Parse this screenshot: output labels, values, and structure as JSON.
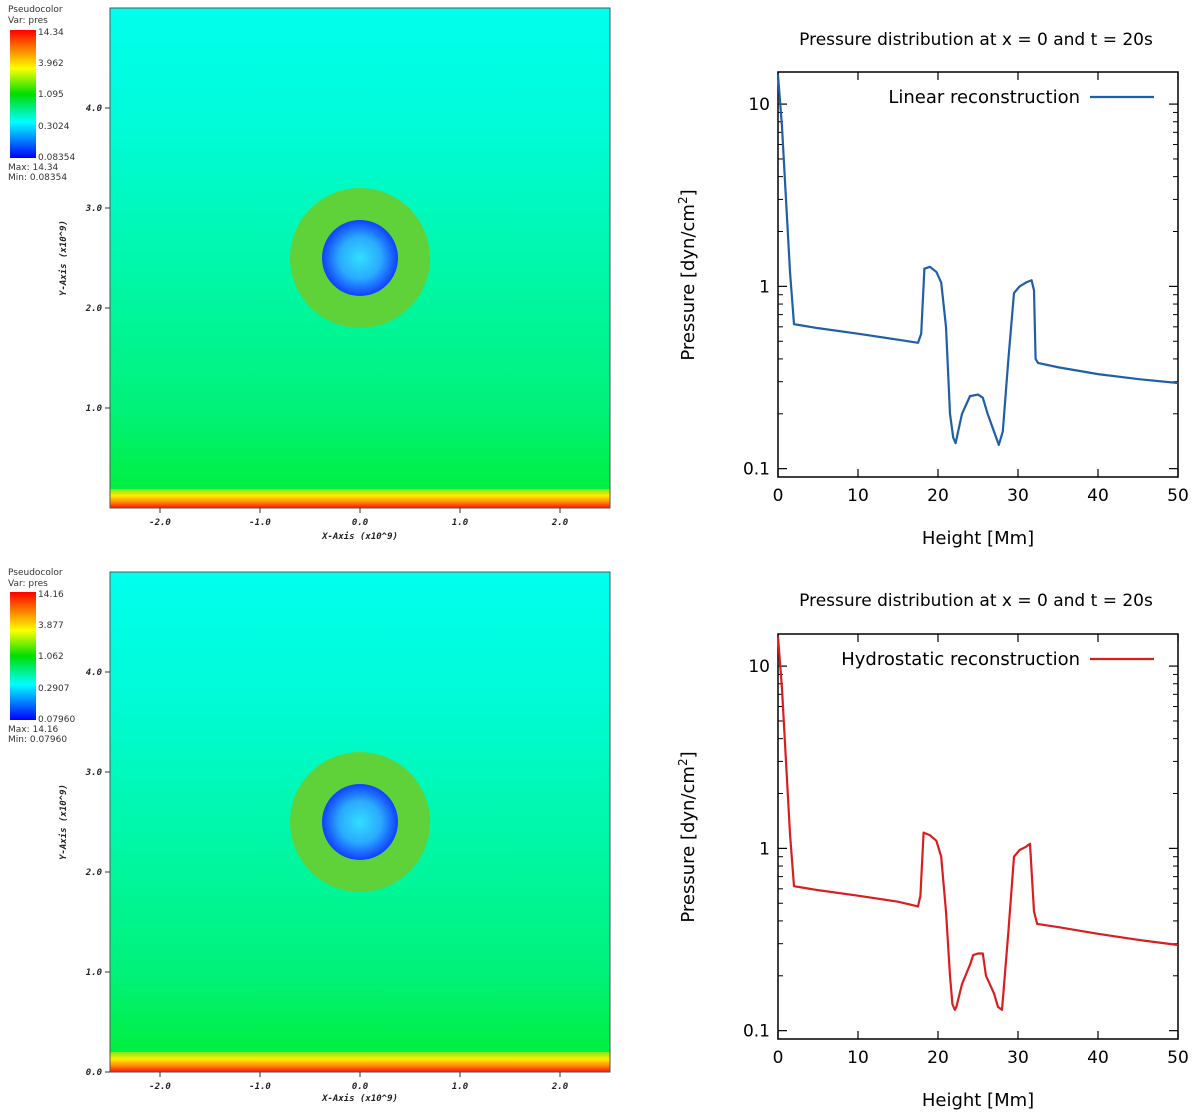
{
  "panels": [
    {
      "id": "top",
      "visit": {
        "legend_title": "Pseudocolor",
        "legend_var": "Var: pres",
        "legend_ticks": [
          "14.34",
          "3.962",
          "1.095",
          "0.3024",
          "0.08354"
        ],
        "legend_max": "Max: 14.34",
        "legend_min": "Min: 0.08354",
        "x_axis_label": "X-Axis (x10^9)",
        "y_axis_label": "Y-Axis (x10^9)",
        "x_ticks": [
          "-2.0",
          "-1.0",
          "0.0",
          "1.0",
          "2.0"
        ],
        "y_ticks": [
          "1.0",
          "2.0",
          "3.0",
          "4.0"
        ],
        "colors": {
          "top": "#00ffee",
          "bottom": "#00ee33",
          "ring": "#5fd23a",
          "bubble": "#2266ff"
        }
      }
    },
    {
      "id": "bottom",
      "visit": {
        "legend_title": "Pseudocolor",
        "legend_var": "Var: pres",
        "legend_ticks": [
          "14.16",
          "3.877",
          "1.062",
          "0.2907",
          "0.07960"
        ],
        "legend_max": "Max: 14.16",
        "legend_min": "Min: 0.07960",
        "x_axis_label": "X-Axis (x10^9)",
        "y_axis_label": "Y-Axis (x10^9)",
        "x_ticks": [
          "-2.0",
          "-1.0",
          "0.0",
          "1.0",
          "2.0"
        ],
        "y_ticks": [
          "0.0",
          "1.0",
          "2.0",
          "3.0",
          "4.0"
        ],
        "colors": {
          "top": "#00ffee",
          "bottom": "#00ee33",
          "ring": "#5fd23a",
          "bubble": "#2266ff"
        }
      }
    }
  ],
  "chart_data": [
    {
      "type": "line",
      "title": "Pressure distribution at x = 0 and t = 20s",
      "xlabel": "Height [Mm]",
      "ylabel": "Pressure [dyn/cm",
      "ylabel_sup": "2",
      "ylabel_end": "]",
      "xlim": [
        0,
        50
      ],
      "ylim": [
        0.09,
        15
      ],
      "yscale": "log",
      "x_ticks": [
        "0",
        "10",
        "20",
        "30",
        "40",
        "50"
      ],
      "y_ticks": [
        "0.1",
        "1",
        "10"
      ],
      "legend_position": "top-right",
      "series": [
        {
          "name": "Linear reconstruction",
          "color": "#1f5fa8",
          "x": [
            0,
            0.5,
            1,
            1.5,
            2,
            3,
            5,
            10,
            15,
            17.5,
            17.9,
            18.3,
            19,
            19.8,
            20.4,
            21,
            21.5,
            21.9,
            22.2,
            23,
            24,
            25,
            25.6,
            26.2,
            27,
            27.6,
            28.1,
            28.8,
            29.5,
            30.2,
            31,
            31.7,
            32,
            32.2,
            32.5,
            35,
            40,
            45,
            50
          ],
          "y": [
            14.5,
            7.5,
            3.0,
            1.2,
            0.62,
            0.61,
            0.59,
            0.55,
            0.51,
            0.49,
            0.55,
            1.25,
            1.28,
            1.2,
            1.05,
            0.6,
            0.2,
            0.148,
            0.138,
            0.2,
            0.25,
            0.255,
            0.245,
            0.2,
            0.16,
            0.135,
            0.16,
            0.4,
            0.92,
            1.0,
            1.05,
            1.08,
            0.95,
            0.4,
            0.38,
            0.36,
            0.33,
            0.31,
            0.295
          ]
        }
      ]
    },
    {
      "type": "line",
      "title": "Pressure distribution at x = 0 and t = 20s",
      "xlabel": "Height [Mm]",
      "ylabel": "Pressure [dyn/cm",
      "ylabel_sup": "2",
      "ylabel_end": "]",
      "xlim": [
        0,
        50
      ],
      "ylim": [
        0.09,
        15
      ],
      "yscale": "log",
      "x_ticks": [
        "0",
        "10",
        "20",
        "30",
        "40",
        "50"
      ],
      "y_ticks": [
        "0.1",
        "1",
        "10"
      ],
      "legend_position": "top-right",
      "series": [
        {
          "name": "Hydrostatic reconstruction",
          "color": "#d81e1e",
          "x": [
            0,
            0.5,
            1,
            1.5,
            2,
            3,
            5,
            10,
            15,
            17.5,
            17.8,
            18.2,
            19,
            19.8,
            20.4,
            21,
            21.5,
            21.8,
            22.1,
            22.3,
            23,
            24,
            24.4,
            25,
            25.6,
            26,
            27,
            27.5,
            28,
            28.8,
            29.5,
            30.2,
            31,
            31.5,
            32,
            32.4,
            35,
            40,
            45,
            50
          ],
          "y": [
            14.5,
            7.5,
            3.0,
            1.2,
            0.62,
            0.61,
            0.59,
            0.55,
            0.51,
            0.48,
            0.55,
            1.22,
            1.18,
            1.1,
            0.9,
            0.45,
            0.2,
            0.14,
            0.13,
            0.135,
            0.18,
            0.23,
            0.26,
            0.265,
            0.265,
            0.2,
            0.16,
            0.135,
            0.13,
            0.35,
            0.9,
            0.98,
            1.02,
            1.06,
            0.45,
            0.385,
            0.37,
            0.34,
            0.315,
            0.295
          ]
        }
      ]
    }
  ]
}
